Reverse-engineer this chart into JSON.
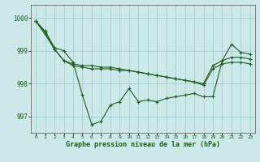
{
  "x": [
    0,
    1,
    2,
    3,
    4,
    5,
    6,
    7,
    8,
    9,
    10,
    11,
    12,
    13,
    14,
    15,
    16,
    17,
    18,
    19,
    20,
    21,
    22,
    23
  ],
  "line1": [
    999.9,
    999.6,
    999.1,
    999.0,
    998.65,
    997.65,
    996.75,
    996.85,
    997.35,
    997.45,
    997.85,
    997.45,
    997.5,
    997.45,
    997.55,
    997.6,
    997.65,
    997.7,
    997.6,
    997.6,
    998.7,
    999.2,
    998.95,
    998.9
  ],
  "line2": [
    999.9,
    999.55,
    999.05,
    998.7,
    998.55,
    998.5,
    998.45,
    998.45,
    998.45,
    998.4,
    998.4,
    998.35,
    998.3,
    998.25,
    998.2,
    998.15,
    998.1,
    998.05,
    998.0,
    998.55,
    998.7,
    998.8,
    998.8,
    998.75
  ],
  "line3": [
    999.9,
    999.5,
    999.05,
    998.7,
    998.6,
    998.55,
    998.55,
    998.5,
    998.5,
    998.45,
    998.4,
    998.35,
    998.3,
    998.25,
    998.2,
    998.15,
    998.1,
    998.05,
    997.95,
    998.45,
    998.6,
    998.65,
    998.65,
    998.6
  ],
  "yticks": [
    997,
    998,
    999,
    1000
  ],
  "xticks": [
    0,
    1,
    2,
    3,
    4,
    5,
    6,
    7,
    8,
    9,
    10,
    11,
    12,
    13,
    14,
    15,
    16,
    17,
    18,
    19,
    20,
    21,
    22,
    23
  ],
  "xlabel": "Graphe pression niveau de la mer (hPa)",
  "ylim": [
    996.5,
    1000.4
  ],
  "xlim": [
    -0.5,
    23.5
  ],
  "bg_color": "#cce8e8",
  "grid_color": "#99cccc",
  "line_color": "#1e5c1e",
  "linewidth": 0.8,
  "markersize": 3.5
}
